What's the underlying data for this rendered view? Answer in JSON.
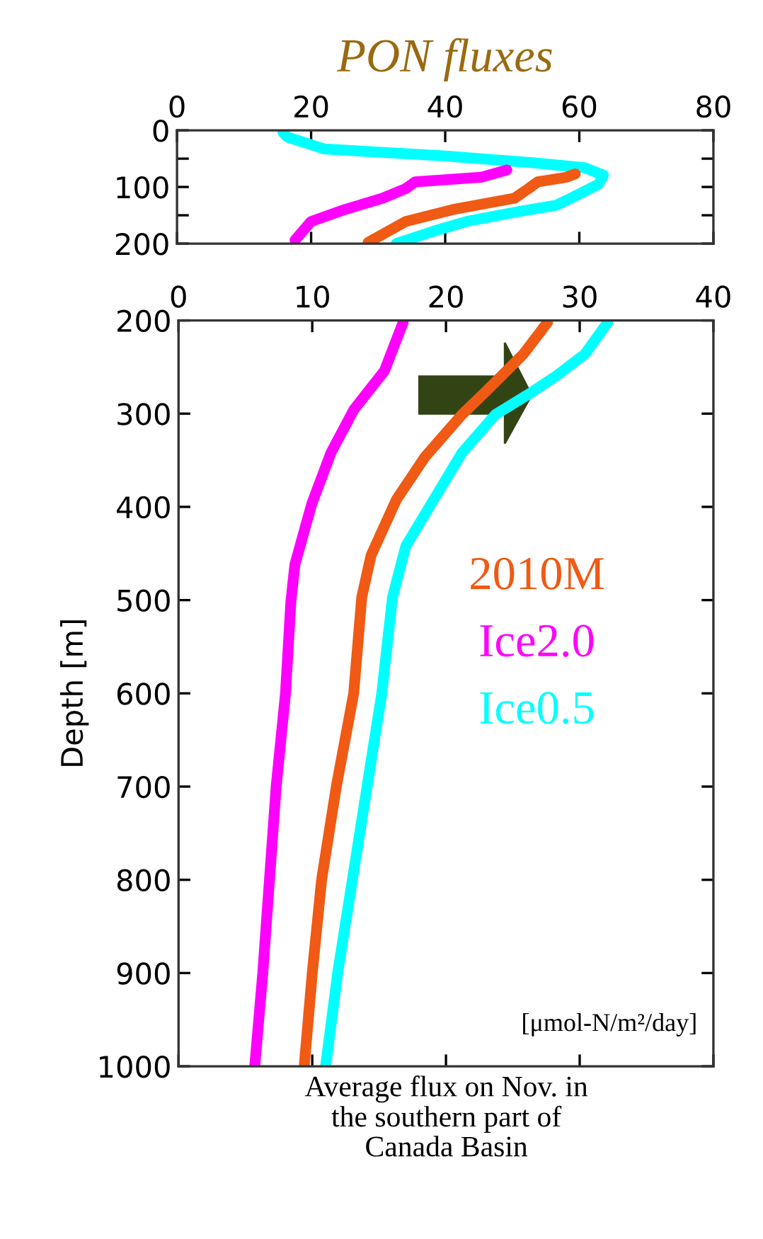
{
  "chart_data": [
    {
      "type": "line",
      "title": "PON fluxes",
      "xlim": [
        0,
        80
      ],
      "xticks": [
        0,
        20,
        40,
        60,
        80
      ],
      "ylim": [
        200,
        0
      ],
      "yticks": [
        0,
        {
          "value": 50,
          "label": null
        },
        100,
        {
          "value": 150,
          "label": null
        },
        200
      ],
      "grid": false,
      "legend": false,
      "marker": "none",
      "line_style": "solid",
      "series": [
        {
          "color": "#00ffff",
          "x": [
            15.8,
            16.5,
            22,
            39.7,
            53.8,
            60.8,
            63.6,
            62.9,
            58.7,
            56.6,
            50.3,
            43.2,
            38.3,
            32.7
          ],
          "values": [
            4,
            12,
            33,
            45,
            58,
            66,
            79,
            95,
            120,
            132,
            145,
            161,
            178,
            200
          ]
        },
        {
          "color": "#ff00ff",
          "x": [
            49.2,
            45.3,
            35.5,
            34.1,
            30.6,
            25,
            20,
            17.6
          ],
          "values": [
            70,
            83,
            91,
            103,
            120,
            140,
            161,
            194
          ]
        },
        {
          "color": "#f05a14",
          "x": [
            59.4,
            58,
            53.8,
            52.4,
            50.3,
            41.1,
            34.1,
            28.5
          ],
          "values": [
            77,
            83,
            91,
            103,
            120,
            140,
            161,
            198
          ]
        }
      ]
    },
    {
      "type": "line",
      "ylabel": "Depth [m]",
      "xlim": [
        0,
        40
      ],
      "xticks": [
        0,
        10,
        20,
        30,
        40
      ],
      "ylim": [
        1000,
        200
      ],
      "yticks": [
        200,
        300,
        400,
        500,
        600,
        700,
        800,
        900,
        1000
      ],
      "grid": false,
      "legend": false,
      "marker": "none",
      "line_style": "solid",
      "annotations": [
        "[μmol-N/m²/day]",
        "Average flux on Nov. in\nthe southern part of\nCanada Basin"
      ],
      "series": [
        {
          "name": "2010M",
          "color": "#f05a14",
          "x": [
            27.6,
            25.8,
            23.0,
            21.2,
            18.4,
            16.3,
            14.4,
            13.7,
            13.1,
            11.8,
            10.7,
            10.0,
            9.4
          ],
          "values": [
            202,
            236,
            276,
            301,
            347,
            392,
            452,
            497,
            600,
            700,
            800,
            900,
            1000
          ]
        },
        {
          "name": "Ice2.0",
          "color": "#ff00ff",
          "x": [
            16.8,
            15.4,
            13.1,
            11.4,
            9.96,
            8.7,
            8.4,
            8.0,
            7.3,
            6.8,
            6.3,
            5.7
          ],
          "values": [
            202,
            254,
            296,
            342,
            397,
            462,
            502,
            600,
            700,
            800,
            900,
            1000
          ]
        },
        {
          "name": "Ice0.5",
          "color": "#00ffff",
          "x": [
            32.1,
            30.4,
            28.3,
            26.2,
            23.7,
            21.2,
            19.1,
            17.0,
            16.0,
            15.2,
            14.1,
            13.0,
            11.9,
            11.0
          ],
          "values": [
            202,
            236,
            259,
            279,
            301,
            342,
            392,
            442,
            497,
            600,
            700,
            800,
            900,
            1000
          ]
        }
      ]
    }
  ]
}
